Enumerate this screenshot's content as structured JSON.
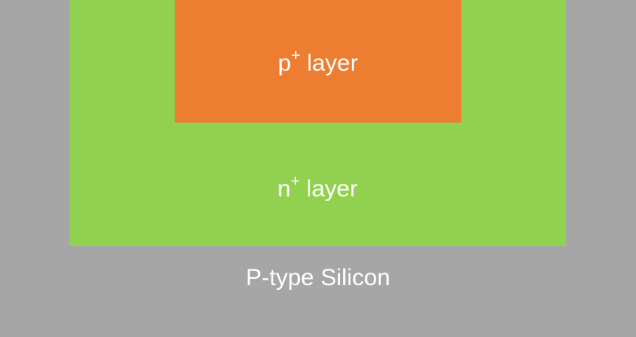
{
  "diagram": {
    "substrate": {
      "label": "P-type Silicon",
      "color": "#a6a6a6"
    },
    "n_layer": {
      "base": "n",
      "superscript": "+",
      "suffix": " layer",
      "color": "#92d050"
    },
    "p_layer": {
      "base": "p",
      "superscript": "+",
      "suffix": " layer",
      "color": "#ed7d31"
    },
    "text_color": "#ffffff"
  }
}
